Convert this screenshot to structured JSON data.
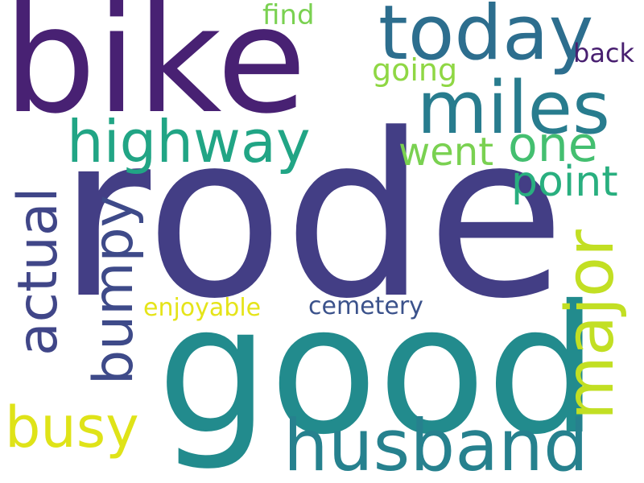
{
  "cloud": {
    "words": {
      "rode": {
        "text": "rode",
        "color": "#433e85"
      },
      "bike": {
        "text": "bike",
        "color": "#482173"
      },
      "good": {
        "text": "good",
        "color": "#228b8d"
      },
      "today": {
        "text": "today",
        "color": "#2d6e8e"
      },
      "miles": {
        "text": "miles",
        "color": "#287c8e"
      },
      "highway": {
        "text": "highway",
        "color": "#21a585"
      },
      "one": {
        "text": "one",
        "color": "#44bf70"
      },
      "went": {
        "text": "went",
        "color": "#7ad151"
      },
      "point": {
        "text": "point",
        "color": "#29af7f"
      },
      "husband": {
        "text": "husband",
        "color": "#26818e"
      },
      "busy": {
        "text": "busy",
        "color": "#dfe318"
      },
      "find": {
        "text": "find",
        "color": "#7ad151"
      },
      "going": {
        "text": "going",
        "color": "#8fd744"
      },
      "back": {
        "text": "back",
        "color": "#481f70"
      },
      "enjoyable": {
        "text": "enjoyable",
        "color": "#e5e419"
      },
      "cemetery": {
        "text": "cemetery",
        "color": "#3b528b"
      },
      "actual": {
        "text": "actual",
        "color": "#404688"
      },
      "bumpy": {
        "text": "bumpy",
        "color": "#3e4a89"
      },
      "major": {
        "text": "major",
        "color": "#c2df23"
      }
    }
  }
}
